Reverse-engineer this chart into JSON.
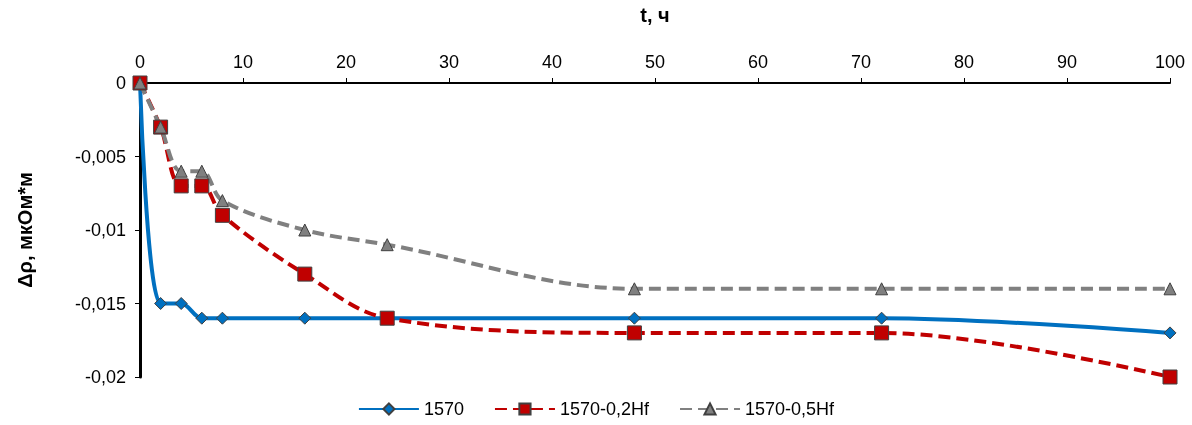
{
  "chart_data": {
    "type": "line",
    "xlabel": "t, ч",
    "ylabel": "Δρ, мкОм*м",
    "x": [
      0,
      2,
      4,
      6,
      8,
      16,
      24,
      48,
      72,
      100
    ],
    "series": [
      {
        "name": "1570",
        "color": "#0070c0",
        "marker": "diamond",
        "line_style": "solid",
        "values": [
          0,
          -0.015,
          -0.015,
          -0.016,
          -0.016,
          -0.016,
          null,
          -0.016,
          -0.016,
          -0.017
        ]
      },
      {
        "name": "1570-0,2Hf",
        "color": "#c00000",
        "marker": "square",
        "line_style": "dashed",
        "values": [
          0,
          -0.003,
          -0.007,
          -0.007,
          -0.009,
          -0.013,
          -0.016,
          -0.017,
          -0.017,
          -0.02
        ]
      },
      {
        "name": "1570-0,5Hf",
        "color": "#808080",
        "marker": "triangle",
        "line_style": "dashed",
        "values": [
          0,
          -0.003,
          -0.006,
          -0.006,
          -0.008,
          -0.01,
          -0.011,
          -0.014,
          -0.014,
          -0.014
        ]
      }
    ],
    "xlim": [
      0,
      100
    ],
    "xticks": [
      0,
      10,
      20,
      30,
      40,
      50,
      60,
      70,
      80,
      90,
      100
    ],
    "ylim": [
      -0.02,
      0
    ],
    "yticks": [
      {
        "value": -0.02,
        "label": "-0,02"
      },
      {
        "value": -0.015,
        "label": "-0,015"
      },
      {
        "value": -0.01,
        "label": "-0,01"
      },
      {
        "value": -0.005,
        "label": "-0,005"
      },
      0
    ],
    "grid": false,
    "legend": "bottom"
  }
}
